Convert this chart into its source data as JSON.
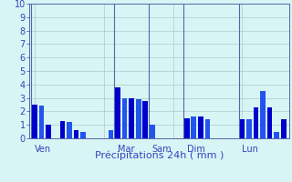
{
  "bar_values": [
    2.5,
    2.4,
    1.0,
    0.0,
    1.3,
    1.2,
    0.6,
    0.5,
    0.0,
    0.0,
    0.0,
    0.6,
    3.8,
    3.0,
    3.0,
    2.9,
    2.8,
    1.0,
    0.0,
    0.0,
    0.0,
    0.0,
    1.5,
    1.6,
    1.6,
    1.4,
    0.0,
    0.0,
    0.0,
    0.0,
    1.4,
    1.4,
    2.3,
    3.5,
    2.3,
    0.5,
    1.4
  ],
  "n_bars": 37,
  "day_labels": [
    "Ven",
    "Mar",
    "Sam",
    "Dim",
    "Lun"
  ],
  "day_bar_indices": [
    0,
    12,
    17,
    22,
    30
  ],
  "xlabel": "Précipitations 24h ( mm )",
  "ylim": [
    0,
    10
  ],
  "yticks": [
    0,
    1,
    2,
    3,
    4,
    5,
    6,
    7,
    8,
    9,
    10
  ],
  "bar_color_dark": "#0000cc",
  "bar_color_light": "#2255ee",
  "bg_color": "#d8f5f5",
  "grid_color": "#aacccc",
  "vline_color": "#5566aa",
  "label_color": "#3344bb",
  "xlabel_fontsize": 8,
  "tick_fontsize": 7
}
